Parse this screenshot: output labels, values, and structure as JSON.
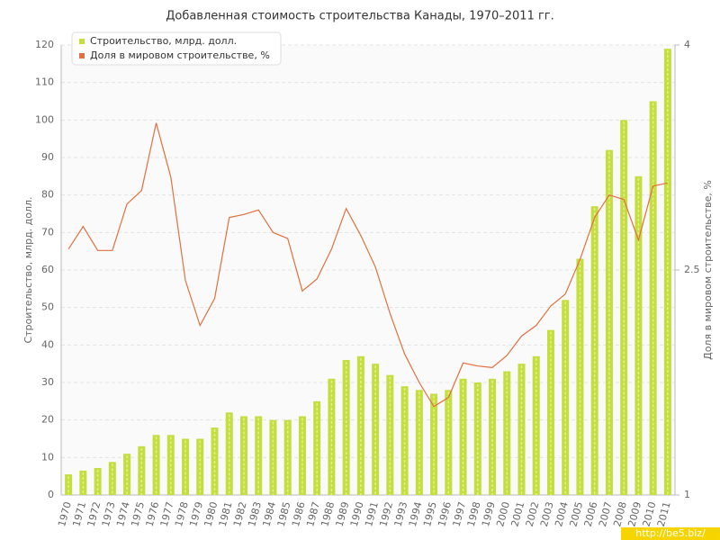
{
  "chart_data": {
    "type": "bar",
    "title": "Добавленная стоимость строительства Канады, 1970–2011 гг.",
    "ylabel": "Строительство, млрд. долл.",
    "y2label": "Доля в мировом строительстве, %",
    "watermark": "http://be5.biz/",
    "categories": [
      "1970",
      "1971",
      "1972",
      "1973",
      "1974",
      "1975",
      "1976",
      "1977",
      "1978",
      "1979",
      "1980",
      "1981",
      "1982",
      "1983",
      "1984",
      "1985",
      "1986",
      "1987",
      "1988",
      "1989",
      "1990",
      "1991",
      "1992",
      "1993",
      "1994",
      "1995",
      "1996",
      "1997",
      "1998",
      "1999",
      "2000",
      "2001",
      "2002",
      "2003",
      "2004",
      "2005",
      "2006",
      "2007",
      "2008",
      "2009",
      "2010",
      "2011"
    ],
    "series": [
      {
        "name": "Строительство, млрд. долл.",
        "type": "bar",
        "color": "#c4dd3f",
        "values": [
          5.5,
          6.5,
          7.2,
          8.8,
          11,
          13,
          16,
          16,
          15,
          15,
          18,
          22,
          21,
          21,
          20,
          20,
          21,
          25,
          31,
          36,
          37,
          35,
          32,
          29,
          28,
          27,
          28,
          31,
          30,
          31,
          33,
          35,
          37,
          44,
          52,
          63,
          77,
          92,
          100,
          85,
          105,
          119
        ]
      },
      {
        "name": "Доля в мировом строительстве, %",
        "type": "line",
        "axis": "y2",
        "color": "#e0703f",
        "values": [
          2.64,
          2.79,
          2.63,
          2.63,
          2.94,
          3.03,
          3.48,
          3.12,
          2.43,
          2.13,
          2.31,
          2.85,
          2.87,
          2.9,
          2.75,
          2.71,
          2.36,
          2.44,
          2.64,
          2.91,
          2.73,
          2.52,
          2.21,
          1.94,
          1.75,
          1.59,
          1.65,
          1.88,
          1.86,
          1.85,
          1.93,
          2.06,
          2.13,
          2.26,
          2.34,
          2.57,
          2.85,
          3.0,
          2.97,
          2.7,
          3.06,
          3.08
        ]
      }
    ],
    "ylim": [
      0,
      120
    ],
    "yticks": [
      0,
      10,
      20,
      30,
      40,
      50,
      60,
      70,
      80,
      90,
      100,
      110,
      120
    ],
    "y2lim": [
      1,
      4
    ],
    "y2ticks": [
      1,
      2.5,
      4
    ],
    "grid": true,
    "legend": "top-left"
  }
}
